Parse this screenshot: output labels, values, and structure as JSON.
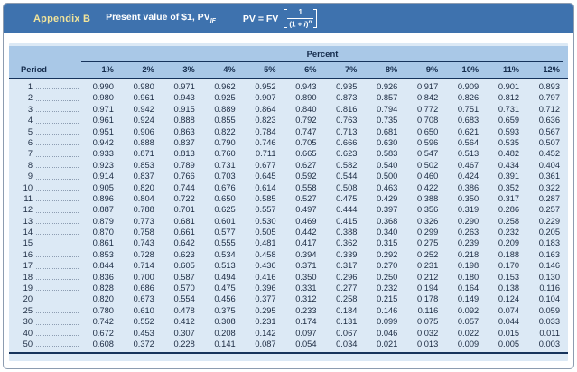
{
  "page": {
    "appendix_label": "Appendix B",
    "title_prefix": "Present value of $1, PV",
    "title_subscript": "IF",
    "formula": {
      "lhs": "PV = FV",
      "numerator": "1",
      "den_open": "(1 + ",
      "den_var": "i",
      "den_close": ")",
      "exponent": "n"
    },
    "colors": {
      "header_bar_blue": "#3e72ae",
      "appendix_yellow": "#f2e49a",
      "band_blue": "#a9c8e7",
      "table_bg_blue": "#dce9f5",
      "rule_navy": "#16335b"
    }
  },
  "table": {
    "group_header": "Percent",
    "period_header": "Period",
    "column_headers": [
      "1%",
      "2%",
      "3%",
      "4%",
      "5%",
      "6%",
      "7%",
      "8%",
      "9%",
      "10%",
      "11%",
      "12%"
    ],
    "rows": [
      {
        "period": "1",
        "values": [
          "0.990",
          "0.980",
          "0.971",
          "0.962",
          "0.952",
          "0.943",
          "0.935",
          "0.926",
          "0.917",
          "0.909",
          "0.901",
          "0.893"
        ]
      },
      {
        "period": "2",
        "values": [
          "0.980",
          "0.961",
          "0.943",
          "0.925",
          "0.907",
          "0.890",
          "0.873",
          "0.857",
          "0.842",
          "0.826",
          "0.812",
          "0.797"
        ]
      },
      {
        "period": "3",
        "values": [
          "0.971",
          "0.942",
          "0.915",
          "0.889",
          "0.864",
          "0.840",
          "0.816",
          "0.794",
          "0.772",
          "0.751",
          "0.731",
          "0.712"
        ]
      },
      {
        "period": "4",
        "values": [
          "0.961",
          "0.924",
          "0.888",
          "0.855",
          "0.823",
          "0.792",
          "0.763",
          "0.735",
          "0.708",
          "0.683",
          "0.659",
          "0.636"
        ]
      },
      {
        "period": "5",
        "values": [
          "0.951",
          "0.906",
          "0.863",
          "0.822",
          "0.784",
          "0.747",
          "0.713",
          "0.681",
          "0.650",
          "0.621",
          "0.593",
          "0.567"
        ]
      },
      {
        "period": "6",
        "values": [
          "0.942",
          "0.888",
          "0.837",
          "0.790",
          "0.746",
          "0.705",
          "0.666",
          "0.630",
          "0.596",
          "0.564",
          "0.535",
          "0.507"
        ]
      },
      {
        "period": "7",
        "values": [
          "0.933",
          "0.871",
          "0.813",
          "0.760",
          "0.711",
          "0.665",
          "0.623",
          "0.583",
          "0.547",
          "0.513",
          "0.482",
          "0.452"
        ]
      },
      {
        "period": "8",
        "values": [
          "0.923",
          "0.853",
          "0.789",
          "0.731",
          "0.677",
          "0.627",
          "0.582",
          "0.540",
          "0.502",
          "0.467",
          "0.434",
          "0.404"
        ]
      },
      {
        "period": "9",
        "values": [
          "0.914",
          "0.837",
          "0.766",
          "0.703",
          "0.645",
          "0.592",
          "0.544",
          "0.500",
          "0.460",
          "0.424",
          "0.391",
          "0.361"
        ]
      },
      {
        "period": "10",
        "values": [
          "0.905",
          "0.820",
          "0.744",
          "0.676",
          "0.614",
          "0.558",
          "0.508",
          "0.463",
          "0.422",
          "0.386",
          "0.352",
          "0.322"
        ]
      },
      {
        "period": "11",
        "values": [
          "0.896",
          "0.804",
          "0.722",
          "0.650",
          "0.585",
          "0.527",
          "0.475",
          "0.429",
          "0.388",
          "0.350",
          "0.317",
          "0.287"
        ]
      },
      {
        "period": "12",
        "values": [
          "0.887",
          "0.788",
          "0.701",
          "0.625",
          "0.557",
          "0.497",
          "0.444",
          "0.397",
          "0.356",
          "0.319",
          "0.286",
          "0.257"
        ]
      },
      {
        "period": "13",
        "values": [
          "0.879",
          "0.773",
          "0.681",
          "0.601",
          "0.530",
          "0.469",
          "0.415",
          "0.368",
          "0.326",
          "0.290",
          "0.258",
          "0.229"
        ]
      },
      {
        "period": "14",
        "values": [
          "0.870",
          "0.758",
          "0.661",
          "0.577",
          "0.505",
          "0.442",
          "0.388",
          "0.340",
          "0.299",
          "0.263",
          "0.232",
          "0.205"
        ]
      },
      {
        "period": "15",
        "values": [
          "0.861",
          "0.743",
          "0.642",
          "0.555",
          "0.481",
          "0.417",
          "0.362",
          "0.315",
          "0.275",
          "0.239",
          "0.209",
          "0.183"
        ]
      },
      {
        "period": "16",
        "values": [
          "0.853",
          "0.728",
          "0.623",
          "0.534",
          "0.458",
          "0.394",
          "0.339",
          "0.292",
          "0.252",
          "0.218",
          "0.188",
          "0.163"
        ]
      },
      {
        "period": "17",
        "values": [
          "0.844",
          "0.714",
          "0.605",
          "0.513",
          "0.436",
          "0.371",
          "0.317",
          "0.270",
          "0.231",
          "0.198",
          "0.170",
          "0.146"
        ]
      },
      {
        "period": "18",
        "values": [
          "0.836",
          "0.700",
          "0.587",
          "0.494",
          "0.416",
          "0.350",
          "0.296",
          "0.250",
          "0.212",
          "0.180",
          "0.153",
          "0.130"
        ]
      },
      {
        "period": "19",
        "values": [
          "0.828",
          "0.686",
          "0.570",
          "0.475",
          "0.396",
          "0.331",
          "0.277",
          "0.232",
          "0.194",
          "0.164",
          "0.138",
          "0.116"
        ]
      },
      {
        "period": "20",
        "values": [
          "0.820",
          "0.673",
          "0.554",
          "0.456",
          "0.377",
          "0.312",
          "0.258",
          "0.215",
          "0.178",
          "0.149",
          "0.124",
          "0.104"
        ]
      },
      {
        "period": "25",
        "values": [
          "0.780",
          "0.610",
          "0.478",
          "0.375",
          "0.295",
          "0.233",
          "0.184",
          "0.146",
          "0.116",
          "0.092",
          "0.074",
          "0.059"
        ]
      },
      {
        "period": "30",
        "values": [
          "0.742",
          "0.552",
          "0.412",
          "0.308",
          "0.231",
          "0.174",
          "0.131",
          "0.099",
          "0.075",
          "0.057",
          "0.044",
          "0.033"
        ]
      },
      {
        "period": "40",
        "values": [
          "0.672",
          "0.453",
          "0.307",
          "0.208",
          "0.142",
          "0.097",
          "0.067",
          "0.046",
          "0.032",
          "0.022",
          "0.015",
          "0.011"
        ]
      },
      {
        "period": "50",
        "values": [
          "0.608",
          "0.372",
          "0.228",
          "0.141",
          "0.087",
          "0.054",
          "0.034",
          "0.021",
          "0.013",
          "0.009",
          "0.005",
          "0.003"
        ]
      }
    ]
  }
}
